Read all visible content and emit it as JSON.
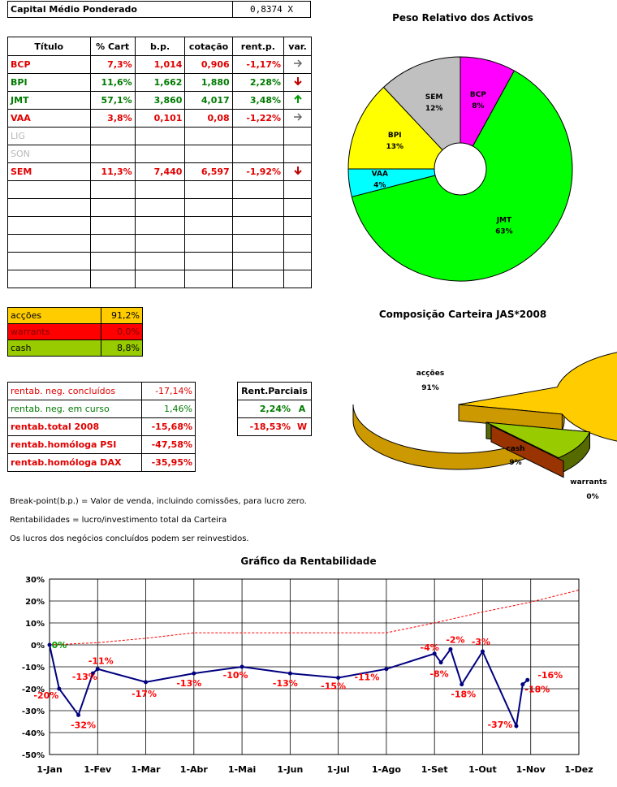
{
  "capital": {
    "label": "Capital Médio Ponderado",
    "value": "0,8374 X"
  },
  "holdings": {
    "headers": [
      "Título",
      "% Cart",
      "b.p.",
      "cotação",
      "rent.p.",
      "var."
    ],
    "rows": [
      {
        "title": "BCP",
        "pct": "7,3%",
        "bp": "1,014",
        "cot": "0,906",
        "rent": "-1,17%",
        "var": "flat",
        "color": "red"
      },
      {
        "title": "BPI",
        "pct": "11,6%",
        "bp": "1,662",
        "cot": "1,880",
        "rent": "2,28%",
        "var": "down",
        "color": "grn"
      },
      {
        "title": "JMT",
        "pct": "57,1%",
        "bp": "3,860",
        "cot": "4,017",
        "rent": "3,48%",
        "var": "up",
        "color": "grn"
      },
      {
        "title": "VAA",
        "pct": "3,8%",
        "bp": "0,101",
        "cot": "0,08",
        "rent": "-1,22%",
        "var": "flat",
        "color": "red"
      },
      {
        "title": "LIG",
        "pct": "",
        "bp": "",
        "cot": "",
        "rent": "",
        "var": "",
        "color": "gray"
      },
      {
        "title": "SON",
        "pct": "",
        "bp": "",
        "cot": "",
        "rent": "",
        "var": "",
        "color": "gray"
      },
      {
        "title": "SEM",
        "pct": "11,3%",
        "bp": "7,440",
        "cot": "6,597",
        "rent": "-1,92%",
        "var": "down",
        "color": "red"
      }
    ],
    "empty_rows": 6
  },
  "allocation": [
    {
      "label": "acções",
      "value": "91,2%",
      "bg": "#ffcc00"
    },
    {
      "label": "warrants",
      "value": "0,0%",
      "bg": "#ff0000"
    },
    {
      "label": "cash",
      "value": "8,8%",
      "bg": "#99cc00"
    }
  ],
  "returns": [
    {
      "label": "rentab. neg. concluídos",
      "value": "-17,14%",
      "bold": false,
      "color": "red"
    },
    {
      "label": "rentab. neg. em curso",
      "value": "1,46%",
      "bold": false,
      "color": "grn"
    },
    {
      "label": "rentab.total 2008",
      "value": "-15,68%",
      "bold": true,
      "color": "red"
    },
    {
      "label": "rentab.homóloga PSI",
      "value": "-47,58%",
      "bold": true,
      "color": "red"
    },
    {
      "label": "rentab.homóloga DAX",
      "value": "-35,95%",
      "bold": true,
      "color": "red"
    }
  ],
  "partial": {
    "header": "Rent.Parciais",
    "rows": [
      {
        "value": "2,24%",
        "tag": "A",
        "color": "grn"
      },
      {
        "value": "-18,53%",
        "tag": "W",
        "color": "red"
      }
    ]
  },
  "notes": [
    "Break-point(b.p.) = Valor de venda, incluindo comissões, para lucro zero.",
    "Rentabilidades = lucro/investimento total da Carteira",
    "Os lucros dos negócios concluídos podem ser reinvestidos."
  ],
  "chart_data": [
    {
      "type": "pie",
      "title": "Peso Relativo dos Activos",
      "labels": [
        "BCP",
        "JMT",
        "VAA",
        "BPI",
        "SEM"
      ],
      "values": [
        8,
        63,
        4,
        13,
        12
      ],
      "value_labels": [
        "8%",
        "63%",
        "4%",
        "13%",
        "12%"
      ],
      "colors": [
        "#ff00ff",
        "#00ff00",
        "#00ffff",
        "#ffff00",
        "#c0c0c0"
      ],
      "donut": true
    },
    {
      "type": "pie",
      "title": "Composição Carteira JAS*2008",
      "labels": [
        "acções",
        "cash",
        "warrants"
      ],
      "values": [
        91,
        9,
        0
      ],
      "value_labels": [
        "91%",
        "9%",
        "0%"
      ],
      "colors": [
        "#ffcc00",
        "#99cc00",
        "#993300"
      ],
      "style": "3d-exploded"
    },
    {
      "type": "line",
      "title": "Gráfico da Rentabilidade",
      "x_ticks": [
        "1-Jan",
        "1-Fev",
        "1-Mar",
        "1-Abr",
        "1-Mai",
        "1-Jun",
        "1-Jul",
        "1-Ago",
        "1-Set",
        "1-Out",
        "1-Nov",
        "1-Dez"
      ],
      "y_ticks": [
        "30%",
        "20%",
        "10%",
        "0%",
        "-10%",
        "-20%",
        "-30%",
        "-40%",
        "-50%"
      ],
      "ylim": [
        -50,
        30
      ],
      "series": [
        {
          "style": "solid-markers",
          "color": "#000080",
          "x": [
            "1-Jan",
            "7-Jan",
            "19-Jan",
            "28-Jan",
            "1-Fev",
            "1-Mar",
            "1-Abr",
            "1-Mai",
            "1-Jun",
            "1-Jul",
            "1-Ago",
            "1-Set",
            "5-Set",
            "11-Set",
            "18-Set",
            "1-Out",
            "22-Out",
            "26-Out",
            "29-Out"
          ],
          "y": [
            0,
            -20,
            -32,
            -13,
            -11,
            -17,
            -13,
            -10,
            -13,
            -15,
            -11,
            -4,
            -8,
            -2,
            -18,
            -3,
            -37,
            -18,
            -16
          ]
        },
        {
          "style": "dashed",
          "color": "#ff0000",
          "x": [
            "1-Jan",
            "1-Fev",
            "1-Mar",
            "1-Abr",
            "1-Mai",
            "1-Jun",
            "1-Jul",
            "1-Ago",
            "1-Set",
            "1-Out",
            "1-Nov",
            "1-Dez"
          ],
          "y": [
            0,
            1,
            3,
            5.5,
            5.5,
            5.5,
            5.5,
            5.5,
            10,
            15,
            19.5,
            25
          ]
        }
      ],
      "labels": [
        {
          "text": "0%",
          "x": "1-Jan",
          "y": 0,
          "color": "#009900"
        },
        {
          "text": "-20%",
          "x": "7-Jan",
          "y": -20
        },
        {
          "text": "-32%",
          "x": "19-Jan",
          "y": -32
        },
        {
          "text": "-13%",
          "x": "28-Jan",
          "y": -13
        },
        {
          "text": "-11%",
          "x": "1-Fev",
          "y": -11
        },
        {
          "text": "-17%",
          "x": "1-Mar",
          "y": -17
        },
        {
          "text": "-13%",
          "x": "1-Abr",
          "y": -13
        },
        {
          "text": "-10%",
          "x": "1-Mai",
          "y": -10
        },
        {
          "text": "-13%",
          "x": "1-Jun",
          "y": -13
        },
        {
          "text": "-15%",
          "x": "1-Jul",
          "y": -15
        },
        {
          "text": "-11%",
          "x": "1-Ago",
          "y": -11
        },
        {
          "text": "-4%",
          "x": "1-Set",
          "y": -4
        },
        {
          "text": "-8%",
          "x": "5-Set",
          "y": -8
        },
        {
          "text": "-2%",
          "x": "11-Set",
          "y": -2
        },
        {
          "text": "-18%",
          "x": "18-Set",
          "y": -18
        },
        {
          "text": "-3%",
          "x": "1-Out",
          "y": -3
        },
        {
          "text": "-37%",
          "x": "22-Out",
          "y": -37
        },
        {
          "text": "-18%",
          "x": "26-Out",
          "y": -18
        },
        {
          "text": "-16%",
          "x": "29-Out",
          "y": -16
        }
      ],
      "grid": true,
      "label_color": "#ff0000"
    }
  ]
}
